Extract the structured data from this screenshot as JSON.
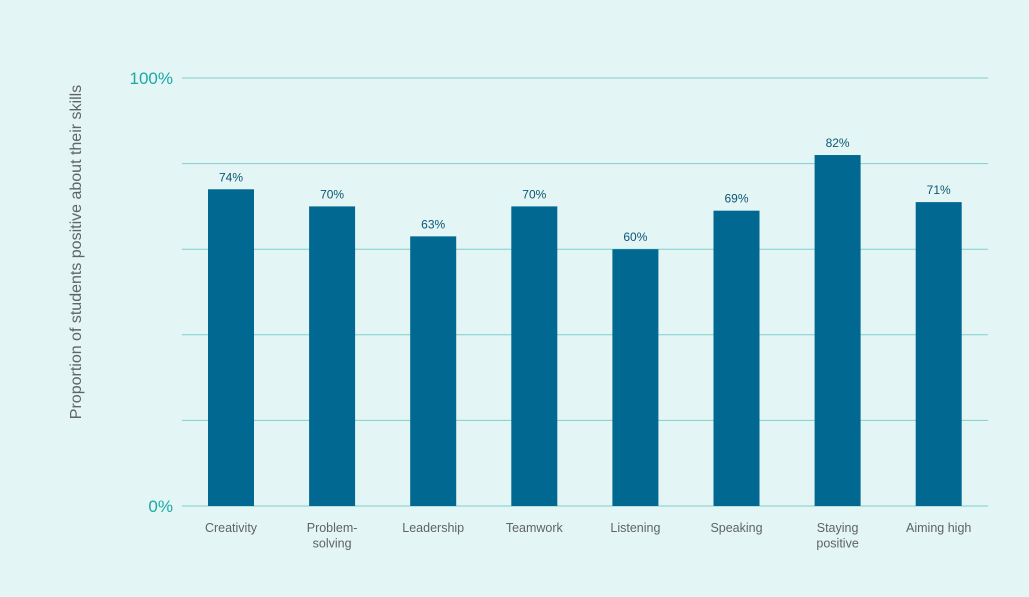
{
  "chart_data": {
    "type": "bar",
    "title": "",
    "xlabel": "",
    "ylabel": "Proportion of students positive about their skills",
    "categories": [
      [
        "Creativity"
      ],
      [
        "Problem-",
        "solving"
      ],
      [
        "Leadership"
      ],
      [
        "Teamwork"
      ],
      [
        "Listening"
      ],
      [
        "Speaking"
      ],
      [
        "Staying",
        "positive"
      ],
      [
        "Aiming high"
      ]
    ],
    "values": [
      74,
      70,
      63,
      70,
      60,
      69,
      82,
      71
    ],
    "data_labels": [
      "74%",
      "70%",
      "63%",
      "70%",
      "60%",
      "69%",
      "82%",
      "71%"
    ],
    "ylim": [
      0,
      100
    ],
    "y_tick_labels": [
      {
        "value": 0,
        "label": "0%"
      },
      {
        "value": 100,
        "label": "100%"
      }
    ],
    "gridlines": [
      0,
      20,
      40,
      60,
      80,
      100
    ],
    "grid": true,
    "legend": "none",
    "colors": {
      "background": "#e4f5f5",
      "bar": "#006891",
      "gridline": "#7fcfcb",
      "ytick_label": "#1aa9a5",
      "axis_label": "#5f6465",
      "category_label": "#5f6465",
      "data_label": "#0c5674"
    }
  }
}
